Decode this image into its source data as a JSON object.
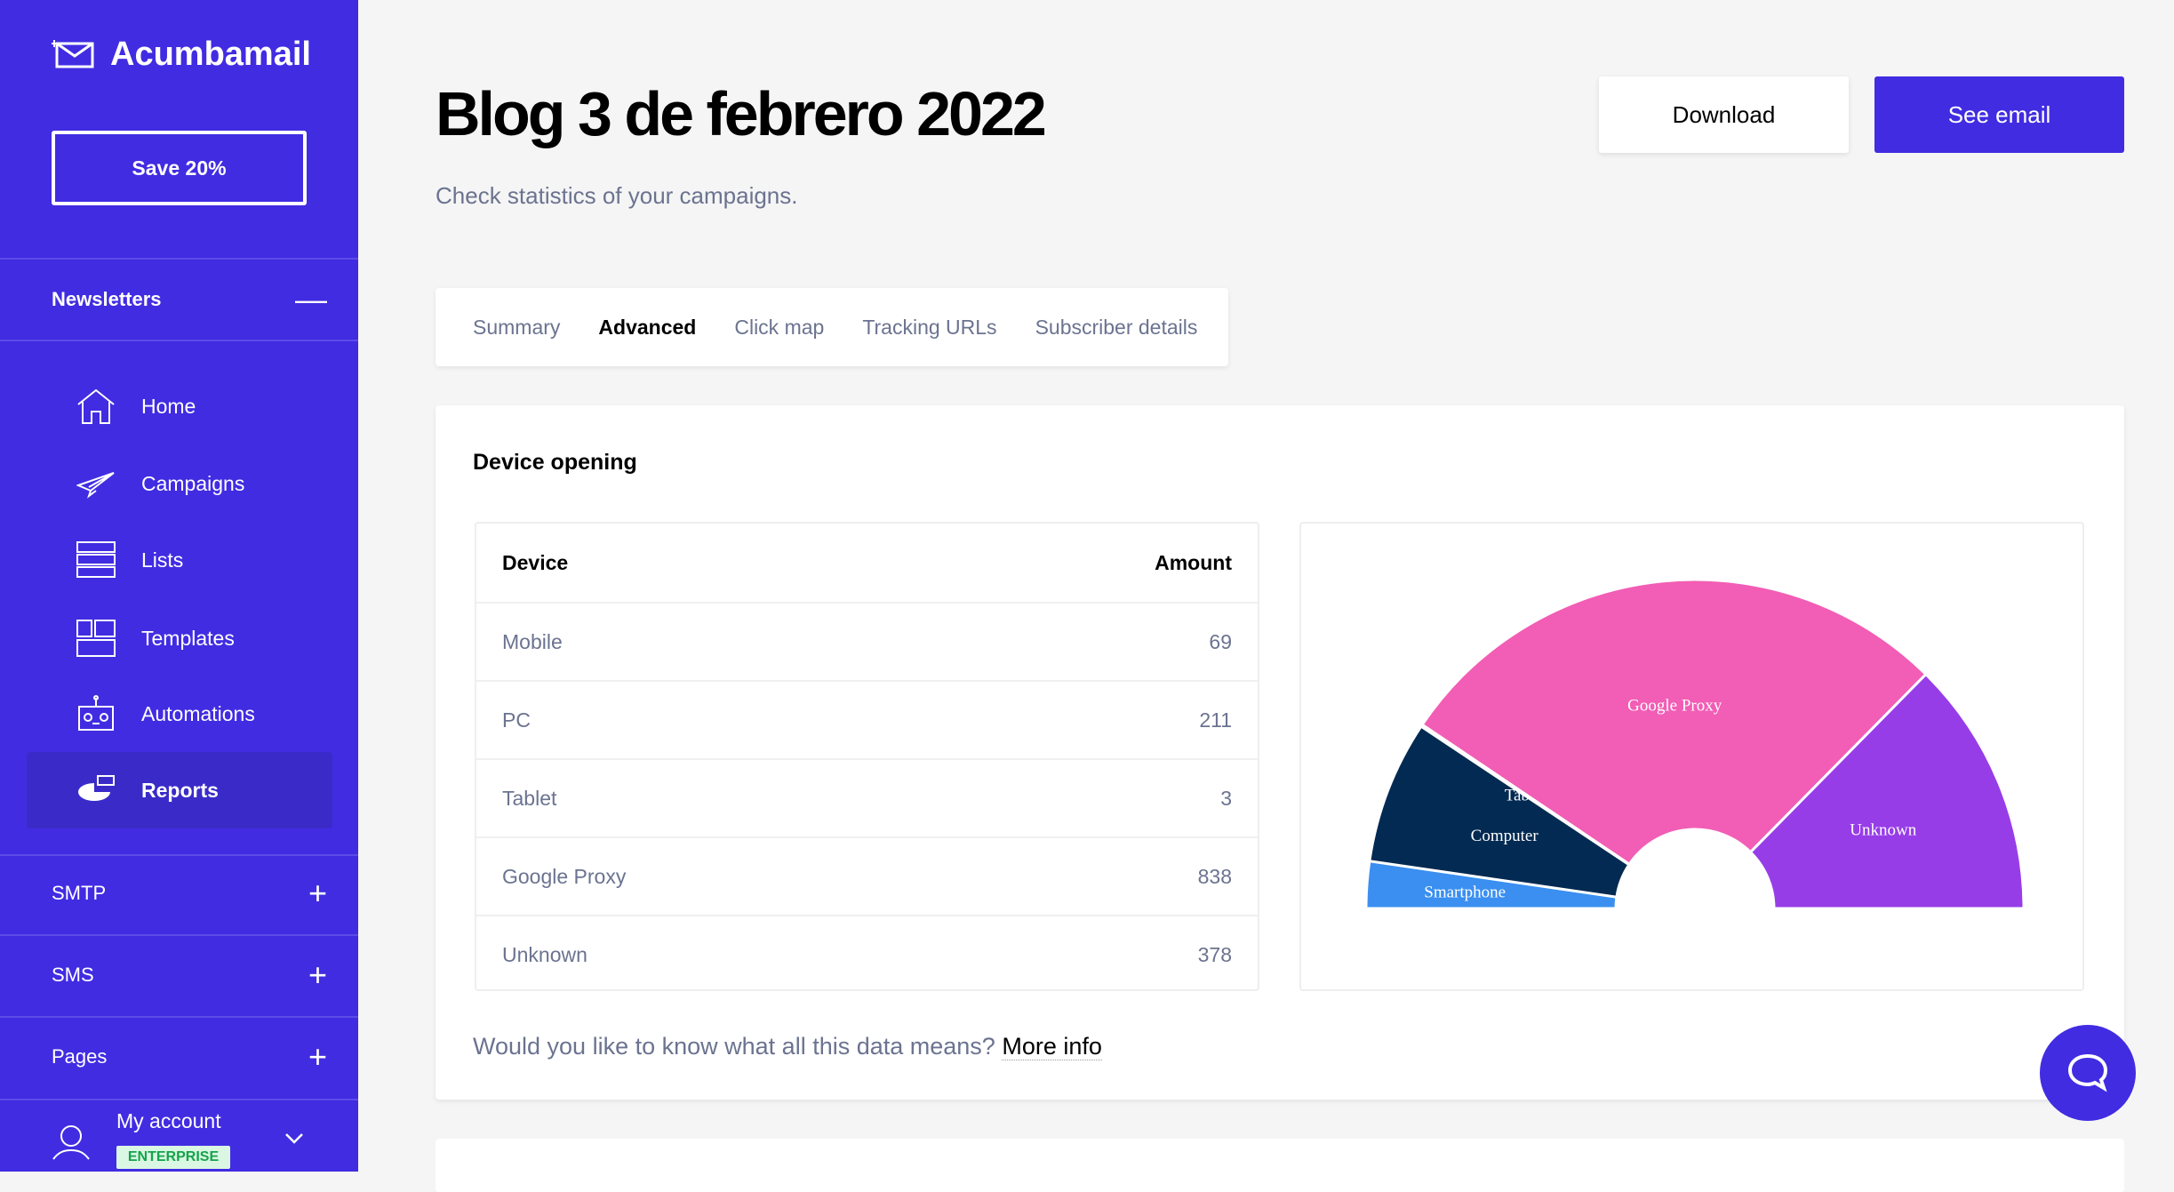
{
  "sidebar": {
    "brand": "Acumbamail",
    "save_label": "Save 20%",
    "newsletters": "Newsletters",
    "items": [
      {
        "label": "Home",
        "icon": "home-icon"
      },
      {
        "label": "Campaigns",
        "icon": "paper-plane-icon"
      },
      {
        "label": "Lists",
        "icon": "lists-icon"
      },
      {
        "label": "Templates",
        "icon": "templates-icon"
      },
      {
        "label": "Automations",
        "icon": "robot-icon"
      },
      {
        "label": "Reports",
        "icon": "pie-chart-icon",
        "active": true
      }
    ],
    "sections": [
      "SMTP",
      "SMS",
      "Pages"
    ],
    "account": {
      "label": "My account",
      "plan": "ENTERPRISE"
    }
  },
  "header": {
    "title": "Blog 3 de febrero 2022",
    "subtitle": "Check statistics of your campaigns.",
    "download": "Download",
    "see_email": "See email"
  },
  "tabs": [
    "Summary",
    "Advanced",
    "Click map",
    "Tracking URLs",
    "Subscriber details"
  ],
  "active_tab": "Advanced",
  "device": {
    "title": "Device opening",
    "columns": [
      "Device",
      "Amount"
    ],
    "rows": [
      [
        "Mobile",
        "69"
      ],
      [
        "PC",
        "211"
      ],
      [
        "Tablet",
        "3"
      ],
      [
        "Google Proxy",
        "838"
      ],
      [
        "Unknown",
        "378"
      ]
    ],
    "info_text": "Would you like to know what all this data means?",
    "info_link": "More info"
  },
  "chart_data": {
    "type": "pie",
    "variant": "half-donut",
    "categories": [
      "Smartphone",
      "Computer",
      "Tablet",
      "Google Proxy",
      "Unknown"
    ],
    "values": [
      69,
      211,
      3,
      838,
      378
    ],
    "colors": [
      "#3a8ff0",
      "#032a52",
      "#6fc7c0",
      "#f25db5",
      "#973de8"
    ]
  },
  "colors": {
    "brand": "#412ce2"
  }
}
